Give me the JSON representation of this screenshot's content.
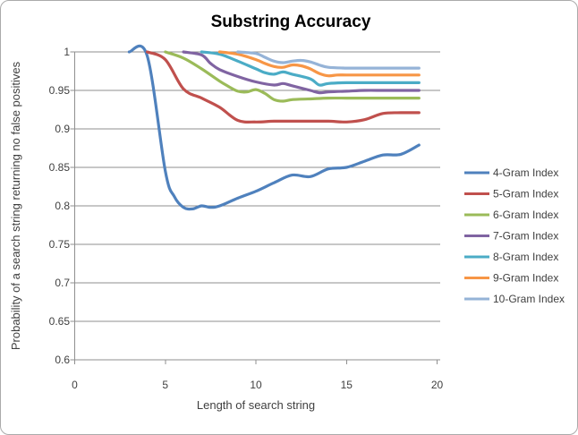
{
  "chart_data": {
    "type": "line",
    "title": "Substring Accuracy",
    "xlabel": "Length of search string",
    "ylabel": "Probability of a search string returning no false positives",
    "xlim": [
      0,
      20
    ],
    "ylim": [
      0.6,
      1.0
    ],
    "x_tick_labels": [
      "0",
      "5",
      "10",
      "15",
      "20"
    ],
    "x_tick_values": [
      0,
      5,
      10,
      15,
      20
    ],
    "y_tick_labels": [
      "1",
      "0.95",
      "0.9",
      "0.85",
      "0.8",
      "0.75",
      "0.7",
      "0.65",
      "0.6"
    ],
    "y_tick_values": [
      1,
      0.95,
      0.9,
      0.85,
      0.8,
      0.75,
      0.7,
      0.65,
      0.6
    ],
    "grid": "horizontal-major",
    "legend_position": "right",
    "line_style": "smooth",
    "series": [
      {
        "name": "4-Gram Index",
        "color": "#4F81BD",
        "points": [
          [
            3,
            1.0
          ],
          [
            4,
            0.995
          ],
          [
            5,
            0.845
          ],
          [
            5.5,
            0.812
          ],
          [
            6,
            0.798
          ],
          [
            6.5,
            0.796
          ],
          [
            7,
            0.8
          ],
          [
            7.5,
            0.798
          ],
          [
            8,
            0.8
          ],
          [
            9,
            0.81
          ],
          [
            10,
            0.819
          ],
          [
            11,
            0.83
          ],
          [
            12,
            0.84
          ],
          [
            13,
            0.838
          ],
          [
            14,
            0.848
          ],
          [
            15,
            0.85
          ],
          [
            16,
            0.858
          ],
          [
            17,
            0.866
          ],
          [
            18,
            0.867
          ],
          [
            19,
            0.879
          ]
        ]
      },
      {
        "name": "5-Gram Index",
        "color": "#C0504D",
        "points": [
          [
            4,
            1.0
          ],
          [
            5,
            0.99
          ],
          [
            6,
            0.952
          ],
          [
            7,
            0.94
          ],
          [
            8,
            0.928
          ],
          [
            9,
            0.911
          ],
          [
            10,
            0.909
          ],
          [
            11,
            0.91
          ],
          [
            12,
            0.91
          ],
          [
            13,
            0.91
          ],
          [
            14,
            0.91
          ],
          [
            15,
            0.909
          ],
          [
            16,
            0.912
          ],
          [
            17,
            0.92
          ],
          [
            18,
            0.921
          ],
          [
            19,
            0.921
          ]
        ]
      },
      {
        "name": "6-Gram Index",
        "color": "#9BBB59",
        "points": [
          [
            5,
            1.0
          ],
          [
            6,
            0.992
          ],
          [
            7,
            0.978
          ],
          [
            8,
            0.962
          ],
          [
            8.5,
            0.955
          ],
          [
            9,
            0.949
          ],
          [
            9.5,
            0.948
          ],
          [
            10,
            0.951
          ],
          [
            10.5,
            0.946
          ],
          [
            11,
            0.938
          ],
          [
            11.5,
            0.936
          ],
          [
            12,
            0.938
          ],
          [
            13,
            0.939
          ],
          [
            14,
            0.94
          ],
          [
            15,
            0.94
          ],
          [
            16,
            0.94
          ],
          [
            17,
            0.94
          ],
          [
            18,
            0.94
          ],
          [
            19,
            0.94
          ]
        ]
      },
      {
        "name": "7-Gram Index",
        "color": "#8064A2",
        "points": [
          [
            6,
            1.0
          ],
          [
            7,
            0.996
          ],
          [
            7.5,
            0.985
          ],
          [
            8,
            0.977
          ],
          [
            9,
            0.968
          ],
          [
            10,
            0.961
          ],
          [
            11,
            0.957
          ],
          [
            11.5,
            0.959
          ],
          [
            12,
            0.956
          ],
          [
            13,
            0.95
          ],
          [
            13.5,
            0.947
          ],
          [
            14,
            0.948
          ],
          [
            15,
            0.949
          ],
          [
            16,
            0.95
          ],
          [
            17,
            0.95
          ],
          [
            18,
            0.95
          ],
          [
            19,
            0.95
          ]
        ]
      },
      {
        "name": "8-Gram Index",
        "color": "#4BACC6",
        "points": [
          [
            7,
            1.0
          ],
          [
            8,
            0.997
          ],
          [
            9,
            0.988
          ],
          [
            10,
            0.978
          ],
          [
            10.5,
            0.973
          ],
          [
            11,
            0.971
          ],
          [
            11.5,
            0.974
          ],
          [
            12,
            0.971
          ],
          [
            13,
            0.965
          ],
          [
            13.5,
            0.957
          ],
          [
            14,
            0.959
          ],
          [
            15,
            0.96
          ],
          [
            16,
            0.96
          ],
          [
            17,
            0.96
          ],
          [
            18,
            0.96
          ],
          [
            19,
            0.96
          ]
        ]
      },
      {
        "name": "9-Gram Index",
        "color": "#F79646",
        "points": [
          [
            8,
            1.0
          ],
          [
            9,
            0.997
          ],
          [
            10,
            0.99
          ],
          [
            10.5,
            0.985
          ],
          [
            11,
            0.981
          ],
          [
            11.5,
            0.98
          ],
          [
            12,
            0.983
          ],
          [
            12.5,
            0.982
          ],
          [
            13,
            0.978
          ],
          [
            13.5,
            0.972
          ],
          [
            14,
            0.969
          ],
          [
            14.5,
            0.97
          ],
          [
            15,
            0.97
          ],
          [
            16,
            0.97
          ],
          [
            17,
            0.97
          ],
          [
            18,
            0.97
          ],
          [
            19,
            0.97
          ]
        ]
      },
      {
        "name": "10-Gram Index",
        "color": "#95B3D7",
        "points": [
          [
            9,
            1.0
          ],
          [
            10,
            0.998
          ],
          [
            10.5,
            0.993
          ],
          [
            11,
            0.988
          ],
          [
            11.5,
            0.986
          ],
          [
            12,
            0.988
          ],
          [
            12.5,
            0.989
          ],
          [
            13,
            0.987
          ],
          [
            13.5,
            0.983
          ],
          [
            14,
            0.98
          ],
          [
            15,
            0.979
          ],
          [
            16,
            0.979
          ],
          [
            17,
            0.979
          ],
          [
            18,
            0.979
          ],
          [
            19,
            0.979
          ]
        ]
      }
    ]
  },
  "style": {
    "grid_color": "#8f8f8f",
    "axis_color": "#8f8f8f",
    "text_color": "#3f3f3f",
    "title_color": "#000000",
    "background_color": "#ffffff",
    "border_color": "#ababab",
    "series_stroke_width": 3.2
  }
}
